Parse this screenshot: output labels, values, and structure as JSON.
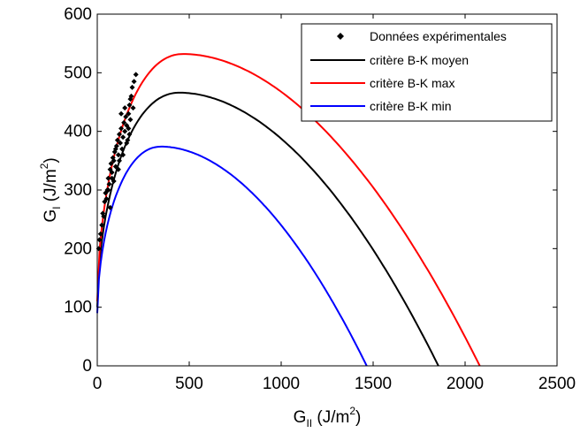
{
  "chart_data": {
    "type": "line",
    "title": "",
    "xlabel": {
      "main": "G",
      "sub": "II",
      "unit_open": " (J/m",
      "unit_sup": "2",
      "unit_close": ")"
    },
    "ylabel": {
      "main": "G",
      "sub": "I",
      "unit_open": " (J/m",
      "unit_sup": "2",
      "unit_close": ")"
    },
    "xlim": [
      0,
      2500
    ],
    "ylim": [
      0,
      600
    ],
    "xticks": [
      0,
      500,
      1000,
      1500,
      2000,
      2500
    ],
    "yticks": [
      0,
      100,
      200,
      300,
      400,
      500,
      600
    ],
    "grid": false,
    "legend_position": "top-right",
    "scatter": {
      "name": "Données expérimentales",
      "color": "#000000",
      "points": [
        [
          8,
          200
        ],
        [
          12,
          215
        ],
        [
          18,
          225
        ],
        [
          25,
          240
        ],
        [
          30,
          260
        ],
        [
          35,
          255
        ],
        [
          40,
          280
        ],
        [
          45,
          295
        ],
        [
          50,
          285
        ],
        [
          55,
          300
        ],
        [
          60,
          320
        ],
        [
          65,
          310
        ],
        [
          70,
          335
        ],
        [
          75,
          345
        ],
        [
          80,
          330
        ],
        [
          85,
          355
        ],
        [
          90,
          350
        ],
        [
          95,
          365
        ],
        [
          100,
          340
        ],
        [
          105,
          375
        ],
        [
          110,
          385
        ],
        [
          115,
          360
        ],
        [
          120,
          395
        ],
        [
          125,
          380
        ],
        [
          130,
          405
        ],
        [
          135,
          370
        ],
        [
          140,
          390
        ],
        [
          145,
          415
        ],
        [
          150,
          400
        ],
        [
          155,
          425
        ],
        [
          160,
          410
        ],
        [
          165,
          385
        ],
        [
          170,
          430
        ],
        [
          175,
          445
        ],
        [
          180,
          420
        ],
        [
          185,
          460
        ],
        [
          190,
          475
        ],
        [
          195,
          440
        ],
        [
          200,
          485
        ],
        [
          210,
          497
        ],
        [
          100,
          370
        ],
        [
          120,
          350
        ],
        [
          140,
          360
        ],
        [
          160,
          380
        ],
        [
          175,
          395
        ],
        [
          60,
          300
        ],
        [
          80,
          320
        ],
        [
          130,
          430
        ],
        [
          150,
          440
        ],
        [
          180,
          455
        ],
        [
          70,
          270
        ],
        [
          90,
          315
        ],
        [
          115,
          335
        ],
        [
          170,
          405
        ]
      ]
    },
    "series": [
      {
        "name": "critère B-K moyen",
        "color": "#000000",
        "peak": [
          450,
          466
        ],
        "end": 1855,
        "start": 100
      },
      {
        "name": "critère B-K max",
        "color": "#ff0000",
        "peak": [
          470,
          532
        ],
        "end": 2080,
        "start": 110
      },
      {
        "name": "critère B-K min",
        "color": "#0000ff",
        "peak": [
          350,
          374
        ],
        "end": 1465,
        "start": 90
      }
    ]
  }
}
